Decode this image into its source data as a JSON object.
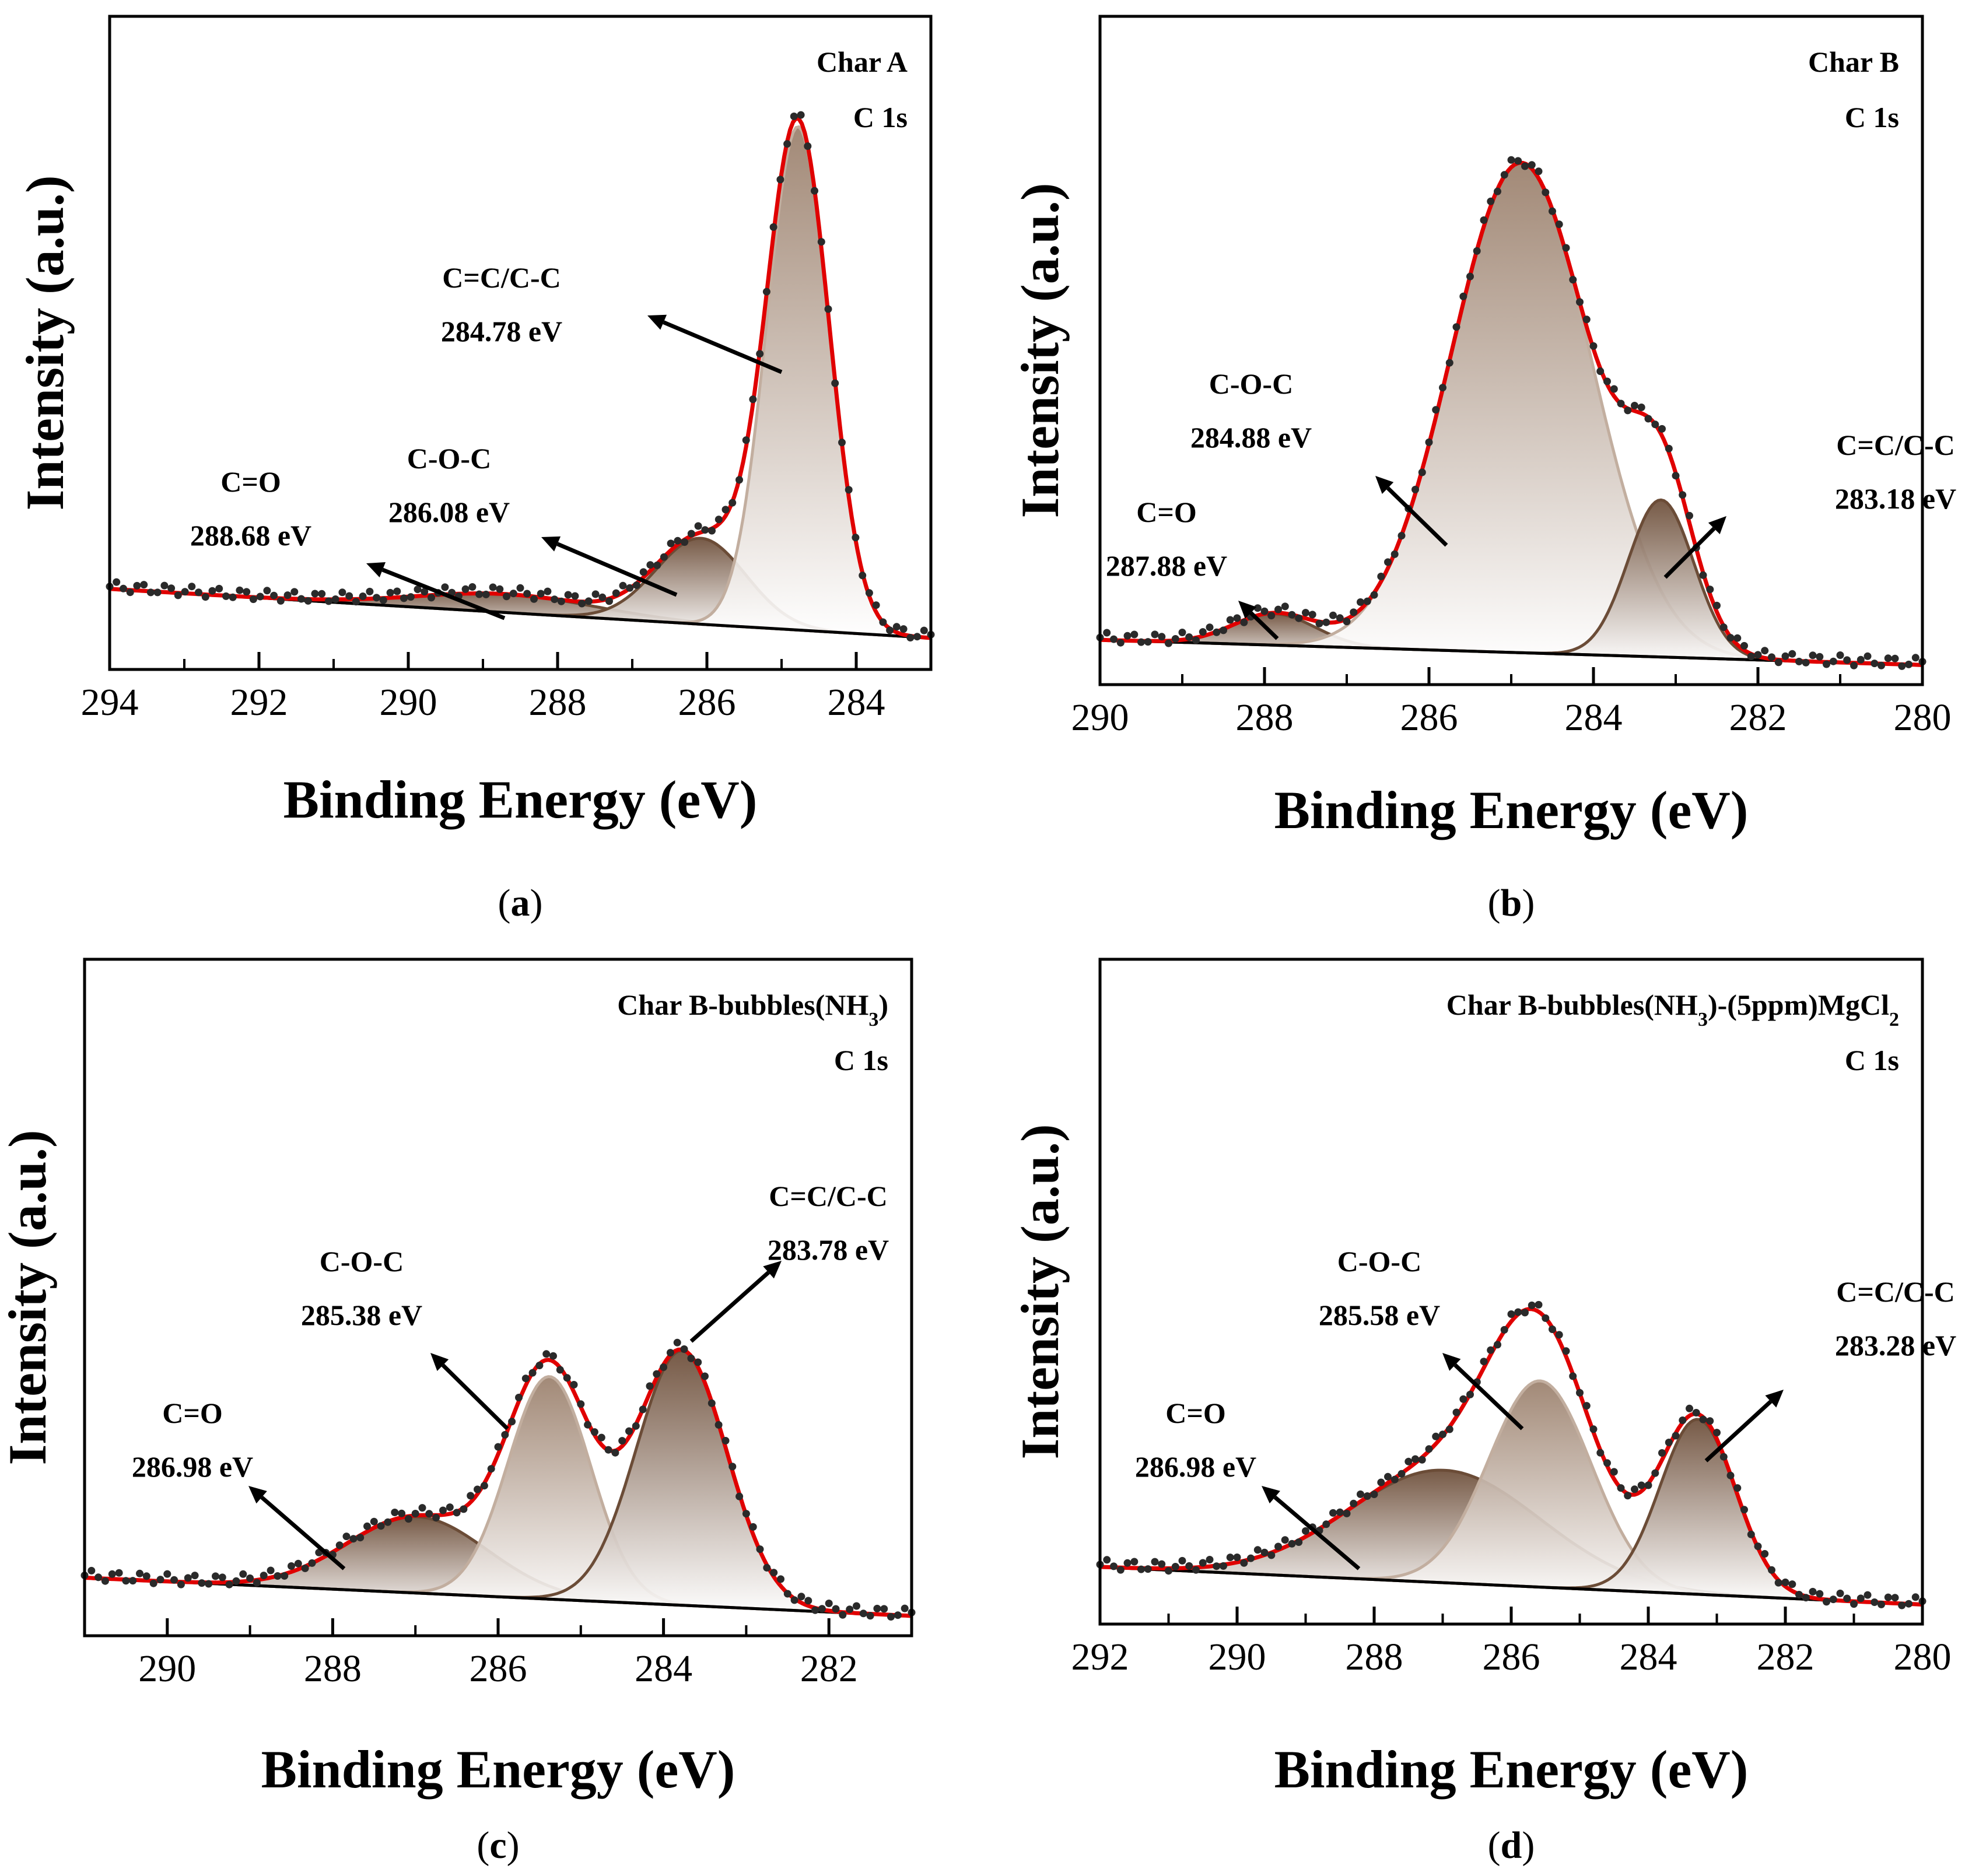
{
  "colors": {
    "envelope": "#e00000",
    "data_points": "#2a2a2a",
    "baseline": "#111111",
    "peak_dark": "#6b4c37",
    "peak_light": "#c2ae9f",
    "arrow": "#000000"
  },
  "chart_data": [
    {
      "panel": "a",
      "type": "line",
      "sample": "Char A",
      "sample_sub": "",
      "sample_tail": "",
      "sample_sub2": "",
      "orbital": "C 1s",
      "xlabel": "Binding Energy (eV)",
      "ylabel": "Intensity (a.u.)",
      "xlim": [
        294,
        283
      ],
      "xticks": [
        294,
        292,
        290,
        288,
        286,
        284
      ],
      "tick_labels": [
        "294",
        "292",
        "290",
        "288",
        "286",
        "284"
      ],
      "ylim": [
        0,
        100
      ],
      "caption_open": "(",
      "caption_letter": "a",
      "caption_close": ")",
      "baseline": {
        "left": 11,
        "right": 3
      },
      "peaks": [
        {
          "label": "C=O",
          "energy_label": "288.68 eV",
          "center": 288.68,
          "height": 3,
          "sigma": 1.2,
          "tone": "dark"
        },
        {
          "label": "C-O-C",
          "energy_label": "286.08 eV",
          "center": 286.08,
          "height": 14,
          "sigma": 0.6,
          "tone": "dark"
        },
        {
          "label": "C=C/C-C",
          "energy_label": "284.78 eV",
          "center": 284.78,
          "height": 82,
          "sigma": 0.42,
          "tone": "light"
        }
      ]
    },
    {
      "panel": "b",
      "type": "line",
      "sample": "Char B",
      "sample_sub": "",
      "sample_tail": "",
      "sample_sub2": "",
      "orbital": "C 1s",
      "xlabel": "Binding Energy (eV)",
      "ylabel": "Intensity (a.u.)",
      "xlim": [
        290,
        280
      ],
      "xticks": [
        290,
        288,
        286,
        284,
        282,
        280
      ],
      "tick_labels": [
        "290",
        "288",
        "286",
        "284",
        "282",
        "280"
      ],
      "ylim": [
        0,
        100
      ],
      "caption_open": "(",
      "caption_letter": "b",
      "caption_close": ")",
      "baseline": {
        "left": 5,
        "right": 1
      },
      "peaks": [
        {
          "label": "C=O",
          "energy_label": "287.88 eV",
          "center": 287.88,
          "height": 5,
          "sigma": 0.5,
          "tone": "dark"
        },
        {
          "label": "C-O-C",
          "energy_label": "284.88 eV",
          "center": 284.88,
          "height": 78,
          "sigma": 0.85,
          "tone": "light"
        },
        {
          "label": "C=C/C-C",
          "energy_label": "283.18 eV",
          "center": 283.18,
          "height": 25,
          "sigma": 0.4,
          "tone": "dark"
        }
      ]
    },
    {
      "panel": "c",
      "type": "line",
      "sample": "Char B-bubbles(NH",
      "sample_sub": "3",
      "sample_tail": ")",
      "sample_sub2": "",
      "orbital": "C 1s",
      "xlabel": "Binding Energy (eV)",
      "ylabel": "Intensity (a.u.)",
      "xlim": [
        291,
        281
      ],
      "xticks": [
        290,
        288,
        286,
        284,
        282
      ],
      "tick_labels": [
        "290",
        "288",
        "286",
        "284",
        "282"
      ],
      "ylim": [
        0,
        100
      ],
      "caption_open": "(",
      "caption_letter": "c",
      "caption_close": ")",
      "baseline": {
        "left": 7,
        "right": 1
      },
      "peaks": [
        {
          "label": "C=O",
          "energy_label": "286.98 eV",
          "center": 286.98,
          "height": 12,
          "sigma": 0.85,
          "tone": "dark"
        },
        {
          "label": "C-O-C",
          "energy_label": "285.38 eV",
          "center": 285.38,
          "height": 35,
          "sigma": 0.5,
          "tone": "light"
        },
        {
          "label": "C=C/C-C",
          "energy_label": "283.78 eV",
          "center": 283.78,
          "height": 40,
          "sigma": 0.55,
          "tone": "dark"
        }
      ]
    },
    {
      "panel": "d",
      "type": "line",
      "sample": "Char B-bubbles(NH",
      "sample_sub": "3",
      "sample_tail": ")-(5ppm)MgCl",
      "sample_sub2": "2",
      "orbital": "C 1s",
      "xlabel": "Binding Energy (eV)",
      "ylabel": "Intensity (a.u.)",
      "xlim": [
        292,
        280
      ],
      "xticks": [
        292,
        290,
        288,
        286,
        284,
        282,
        280
      ],
      "tick_labels": [
        "292",
        "290",
        "288",
        "286",
        "284",
        "282",
        "280"
      ],
      "ylim": [
        0,
        100
      ],
      "caption_open": "(",
      "caption_letter": "d",
      "caption_close": ")",
      "baseline": {
        "left": 7,
        "right": 1
      },
      "peaks": [
        {
          "label": "C=O",
          "energy_label": "286.98 eV",
          "center": 286.98,
          "height": 18,
          "sigma": 1.4,
          "tone": "dark"
        },
        {
          "label": "C-O-C",
          "energy_label": "285.58 eV",
          "center": 285.58,
          "height": 33,
          "sigma": 0.75,
          "tone": "light"
        },
        {
          "label": "C=C/C-C",
          "energy_label": "283.28 eV",
          "center": 283.28,
          "height": 28,
          "sigma": 0.55,
          "tone": "dark"
        }
      ]
    }
  ]
}
